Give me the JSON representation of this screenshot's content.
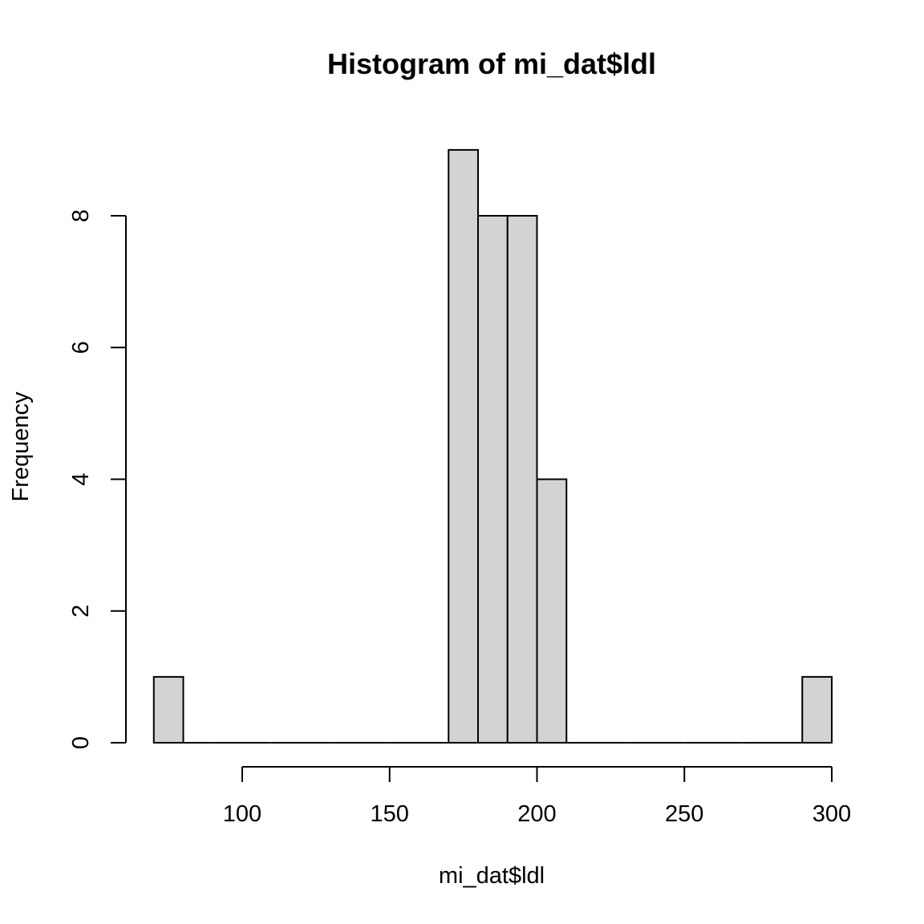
{
  "chart_data": {
    "type": "bar",
    "subtype": "histogram",
    "title": "Histogram of mi_dat$ldl",
    "xlabel": "mi_dat$ldl",
    "ylabel": "Frequency",
    "bin_width": 10,
    "bins": [
      {
        "start": 70,
        "end": 80,
        "count": 1
      },
      {
        "start": 80,
        "end": 90,
        "count": 0
      },
      {
        "start": 90,
        "end": 100,
        "count": 0
      },
      {
        "start": 100,
        "end": 110,
        "count": 0
      },
      {
        "start": 110,
        "end": 120,
        "count": 0
      },
      {
        "start": 120,
        "end": 130,
        "count": 0
      },
      {
        "start": 130,
        "end": 140,
        "count": 0
      },
      {
        "start": 140,
        "end": 150,
        "count": 0
      },
      {
        "start": 150,
        "end": 160,
        "count": 0
      },
      {
        "start": 160,
        "end": 170,
        "count": 0
      },
      {
        "start": 170,
        "end": 180,
        "count": 9
      },
      {
        "start": 180,
        "end": 190,
        "count": 8
      },
      {
        "start": 190,
        "end": 200,
        "count": 8
      },
      {
        "start": 200,
        "end": 210,
        "count": 4
      },
      {
        "start": 210,
        "end": 220,
        "count": 0
      },
      {
        "start": 220,
        "end": 230,
        "count": 0
      },
      {
        "start": 230,
        "end": 240,
        "count": 0
      },
      {
        "start": 240,
        "end": 250,
        "count": 0
      },
      {
        "start": 250,
        "end": 260,
        "count": 0
      },
      {
        "start": 260,
        "end": 270,
        "count": 0
      },
      {
        "start": 270,
        "end": 280,
        "count": 0
      },
      {
        "start": 280,
        "end": 290,
        "count": 0
      },
      {
        "start": 290,
        "end": 300,
        "count": 1
      }
    ],
    "x_ticks": [
      "100",
      "150",
      "200",
      "250",
      "300"
    ],
    "y_ticks": [
      "0",
      "2",
      "4",
      "6",
      "8"
    ],
    "xlim": [
      70,
      300
    ],
    "ylim": [
      0,
      9
    ],
    "grid": false,
    "bar_color": "#d3d3d3",
    "edge_color": "#000000"
  }
}
